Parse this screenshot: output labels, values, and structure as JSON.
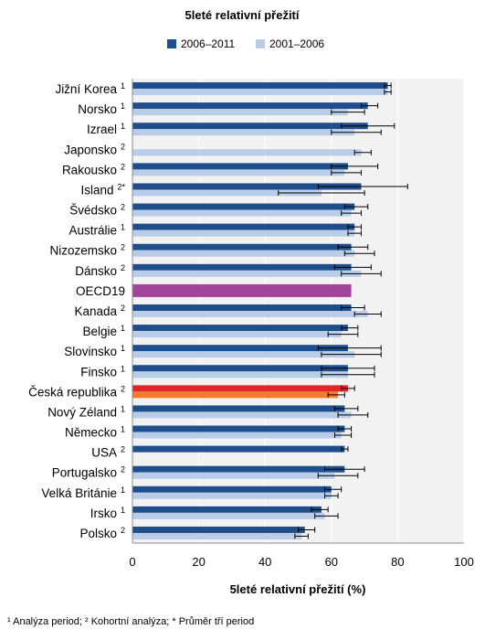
{
  "chart_data": {
    "type": "bar",
    "orientation": "horizontal",
    "title": "5leté relativní přežití",
    "xlabel": "5leté relativní přežití (%)",
    "ylabel": "",
    "xlim": [
      0,
      100
    ],
    "x_ticks": [
      "0",
      "20",
      "40",
      "60",
      "80",
      "100"
    ],
    "grid": true,
    "legend_position": "top",
    "colors": {
      "series_2006": "#1f4e8c",
      "series_2001": "#b9cde9",
      "oecd": "#a3449c",
      "cz_2006": "#e2242b",
      "cz_2001": "#f07d2c",
      "plot_bg": "#f2f2f2",
      "error_bar": "#000000"
    },
    "categories": [
      {
        "name": "Jižní Korea",
        "note": "1"
      },
      {
        "name": "Norsko",
        "note": "1"
      },
      {
        "name": "Izrael",
        "note": "1"
      },
      {
        "name": "Japonsko",
        "note": "2"
      },
      {
        "name": "Rakousko",
        "note": "2"
      },
      {
        "name": "Island",
        "note": "2*"
      },
      {
        "name": "Švédsko",
        "note": "2"
      },
      {
        "name": "Austrálie",
        "note": "1"
      },
      {
        "name": "Nizozemsko",
        "note": "2"
      },
      {
        "name": "Dánsko",
        "note": "2"
      },
      {
        "name": "OECD19",
        "note": ""
      },
      {
        "name": "Kanada",
        "note": "2"
      },
      {
        "name": "Belgie",
        "note": "1"
      },
      {
        "name": "Slovinsko",
        "note": "1"
      },
      {
        "name": "Finsko",
        "note": "1"
      },
      {
        "name": "Česká republika",
        "note": "2"
      },
      {
        "name": "Nový Zéland",
        "note": "1"
      },
      {
        "name": "Německo",
        "note": "1"
      },
      {
        "name": "USA",
        "note": "2"
      },
      {
        "name": "Portugalsko",
        "note": "2"
      },
      {
        "name": "Velká Británie",
        "note": "1"
      },
      {
        "name": "Irsko",
        "note": "1"
      },
      {
        "name": "Polsko",
        "note": "2"
      }
    ],
    "series": [
      {
        "name": "2006–2011",
        "values": [
          77,
          71,
          71,
          null,
          65,
          69,
          67,
          67,
          66,
          66,
          66,
          66,
          65,
          65,
          65,
          65,
          64,
          64,
          64,
          64,
          60,
          57,
          52
        ],
        "error": [
          [
            76,
            78
          ],
          [
            69,
            74
          ],
          [
            63,
            79
          ],
          null,
          [
            60,
            74
          ],
          [
            56,
            83
          ],
          [
            64,
            71
          ],
          [
            65,
            69
          ],
          [
            62,
            71
          ],
          [
            61,
            72
          ],
          null,
          [
            63,
            70
          ],
          [
            63,
            68
          ],
          [
            56,
            75
          ],
          [
            57,
            73
          ],
          [
            63,
            67
          ],
          [
            61,
            68
          ],
          [
            62,
            66
          ],
          [
            63,
            65
          ],
          [
            58,
            70
          ],
          [
            58,
            63
          ],
          [
            54,
            59
          ],
          [
            50,
            55
          ]
        ]
      },
      {
        "name": "2001–2006",
        "values": [
          77,
          65,
          67,
          69,
          64,
          57,
          66,
          67,
          67,
          69,
          66,
          71,
          63,
          67,
          65,
          62,
          66,
          63,
          null,
          61,
          60,
          58,
          51
        ],
        "error": [
          [
            76,
            78
          ],
          [
            60,
            70
          ],
          [
            60,
            75
          ],
          [
            67,
            72
          ],
          [
            60,
            69
          ],
          [
            44,
            70
          ],
          [
            63,
            69
          ],
          [
            65,
            69
          ],
          [
            64,
            73
          ],
          [
            63,
            75
          ],
          null,
          [
            67,
            75
          ],
          [
            59,
            68
          ],
          [
            57,
            75
          ],
          [
            57,
            73
          ],
          [
            59,
            64
          ],
          [
            62,
            71
          ],
          [
            61,
            66
          ],
          null,
          [
            56,
            68
          ],
          [
            58,
            62
          ],
          [
            55,
            62
          ],
          [
            49,
            53
          ]
        ]
      }
    ]
  },
  "footnote": "¹ Analýza period; ² Kohortní analýza; * Průměr tří period"
}
